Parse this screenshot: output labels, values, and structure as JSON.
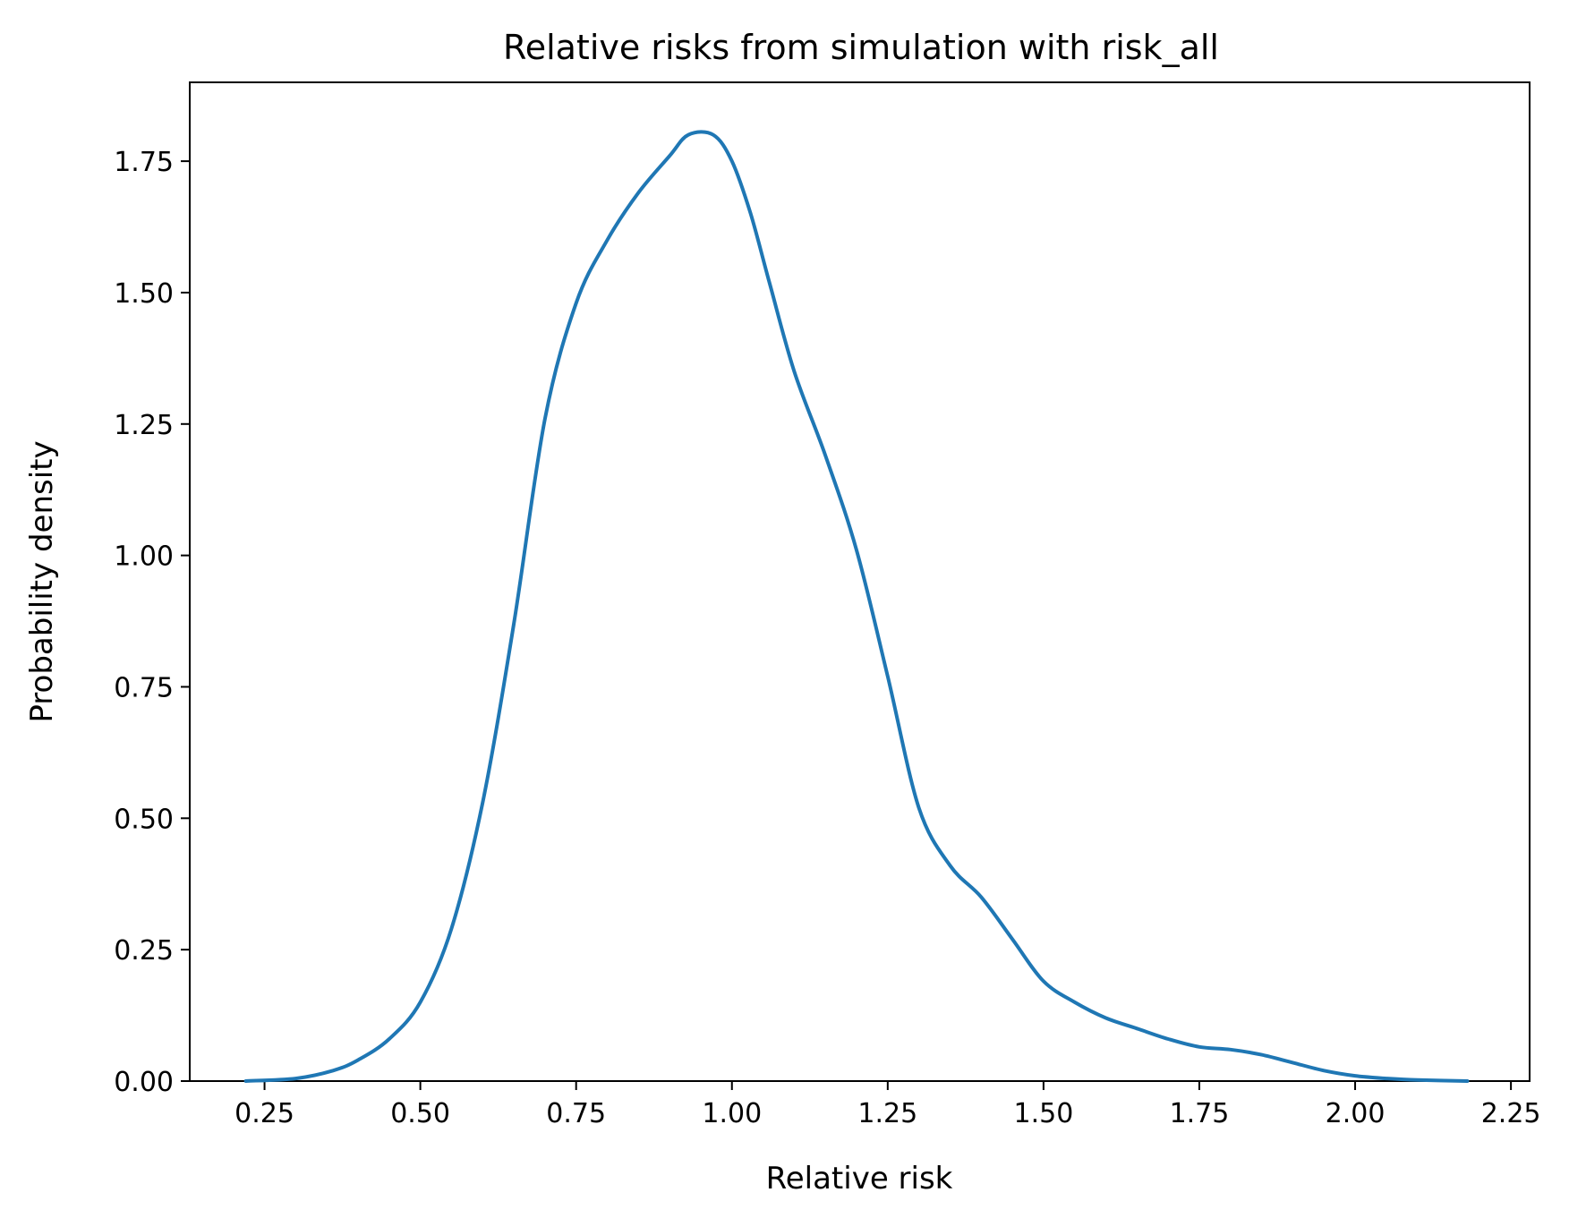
{
  "chart_data": {
    "type": "line",
    "title": "Relative risks from simulation with risk_all",
    "xlabel": "Relative risk",
    "ylabel": "Probability density",
    "xlim": [
      0.13,
      2.28
    ],
    "ylim": [
      0,
      1.9
    ],
    "xticks": [
      "0.25",
      "0.50",
      "0.75",
      "1.00",
      "1.25",
      "1.50",
      "1.75",
      "2.00",
      "2.25"
    ],
    "yticks": [
      "0.00",
      "0.25",
      "0.50",
      "0.75",
      "1.00",
      "1.25",
      "1.50",
      "1.75"
    ],
    "grid": false,
    "line_color": "#1f77b4",
    "series": [
      {
        "x": [
          0.22,
          0.3,
          0.36,
          0.4,
          0.45,
          0.5,
          0.55,
          0.6,
          0.65,
          0.7,
          0.75,
          0.8,
          0.85,
          0.9,
          0.93,
          0.97,
          1.0,
          1.03,
          1.06,
          1.1,
          1.15,
          1.2,
          1.25,
          1.3,
          1.35,
          1.4,
          1.45,
          1.5,
          1.55,
          1.6,
          1.65,
          1.7,
          1.75,
          1.8,
          1.85,
          1.9,
          1.95,
          2.0,
          2.05,
          2.1,
          2.18
        ],
        "y": [
          0.0,
          0.005,
          0.02,
          0.04,
          0.08,
          0.15,
          0.29,
          0.53,
          0.87,
          1.26,
          1.48,
          1.6,
          1.69,
          1.76,
          1.8,
          1.8,
          1.75,
          1.65,
          1.52,
          1.35,
          1.19,
          1.01,
          0.77,
          0.52,
          0.41,
          0.35,
          0.27,
          0.19,
          0.15,
          0.12,
          0.1,
          0.08,
          0.065,
          0.06,
          0.05,
          0.035,
          0.02,
          0.01,
          0.005,
          0.002,
          0.0
        ]
      }
    ]
  }
}
